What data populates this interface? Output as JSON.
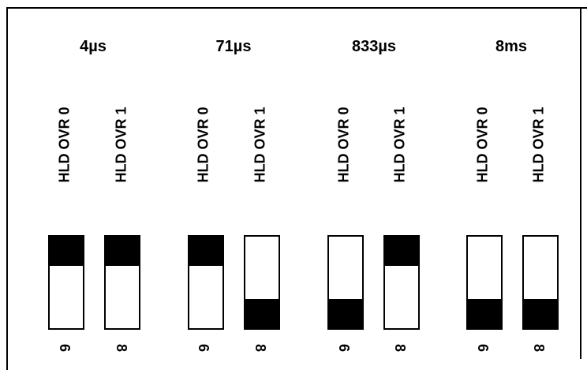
{
  "groups": [
    {
      "title": "4µs",
      "switches": [
        {
          "label": "HLD OVR 0",
          "position": "up",
          "number": "6"
        },
        {
          "label": "HLD OVR 1",
          "position": "up",
          "number": "8"
        }
      ]
    },
    {
      "title": "71µs",
      "switches": [
        {
          "label": "HLD OVR 0",
          "position": "up",
          "number": "6"
        },
        {
          "label": "HLD OVR 1",
          "position": "down",
          "number": "8"
        }
      ]
    },
    {
      "title": "833µs",
      "switches": [
        {
          "label": "HLD OVR 0",
          "position": "down",
          "number": "6"
        },
        {
          "label": "HLD OVR 1",
          "position": "up",
          "number": "8"
        }
      ]
    },
    {
      "title": "8ms",
      "switches": [
        {
          "label": "HLD OVR 0",
          "position": "down",
          "number": "6"
        },
        {
          "label": "HLD OVR 1",
          "position": "down",
          "number": "8"
        }
      ]
    }
  ]
}
